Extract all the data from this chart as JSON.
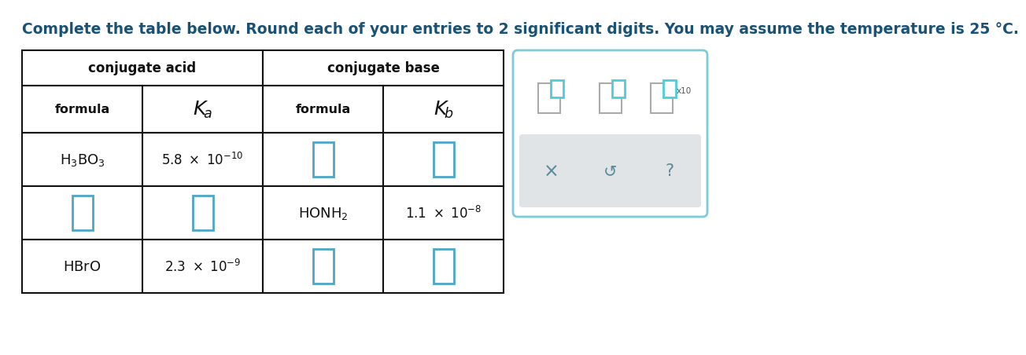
{
  "title": "Complete the table below. Round each of your entries to 2 significant digits. You may assume the temperature is 25 °C.",
  "title_color": "#1a5276",
  "title_fontsize": 13.5,
  "background_color": "#ffffff",
  "table_border_color": "#111111",
  "table_text_color": "#111111",
  "input_box_color": "#4da6c8",
  "widget": {
    "border_color": "#7cccd8",
    "icon_large_color": "#aaaaaa",
    "icon_small_color": "#4ecdd8",
    "bottom_bg": "#e0e4e6",
    "btn_color": "#5b8a99",
    "x10_color": "#555555"
  }
}
